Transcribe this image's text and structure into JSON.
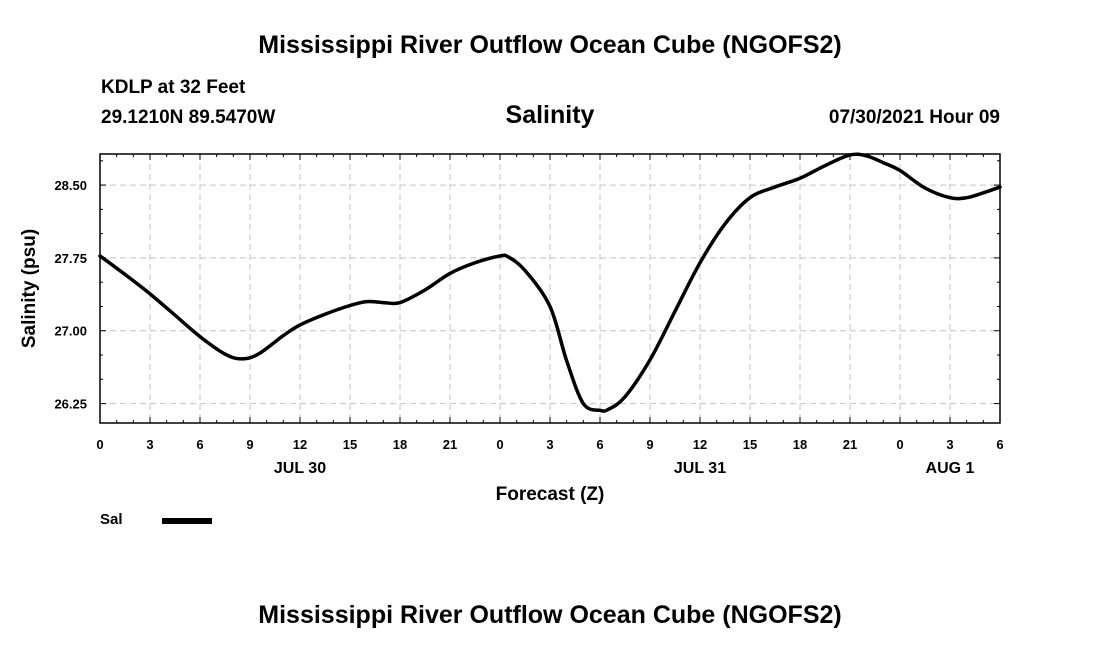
{
  "chart_data": {
    "type": "line",
    "title": "Mississippi River Outflow Ocean Cube (NGOFS2)",
    "bottom_title": "Mississippi River Outflow Ocean Cube (NGOFS2)",
    "station": "KDLP at 32 Feet",
    "coords": "29.1210N  89.5470W",
    "variable": "Salinity",
    "date": "07/30/2021 Hour 09",
    "xlabel": "Forecast (Z)",
    "ylabel": "Salinity (psu)",
    "xlim": [
      0,
      54
    ],
    "ylim": [
      26.05,
      28.82
    ],
    "x_ticks": [
      0,
      3,
      6,
      9,
      12,
      15,
      18,
      21,
      24,
      27,
      30,
      33,
      36,
      39,
      42,
      45,
      48,
      51,
      54
    ],
    "x_tick_labels": [
      "0",
      "3",
      "6",
      "9",
      "12",
      "15",
      "18",
      "21",
      "0",
      "3",
      "6",
      "9",
      "12",
      "15",
      "18",
      "21",
      "0",
      "3",
      "6"
    ],
    "y_ticks": [
      26.25,
      27.0,
      27.75,
      28.5
    ],
    "y_tick_labels": [
      "26.25",
      "27.00",
      "27.75",
      "28.50"
    ],
    "day_labels": [
      {
        "x": 12,
        "label": "JUL 30"
      },
      {
        "x": 36,
        "label": "JUL 31"
      },
      {
        "x": 51,
        "label": "AUG 1"
      }
    ],
    "grid": true,
    "series": [
      {
        "name": "Sal",
        "color": "#000000",
        "x": [
          0,
          1.5,
          3,
          4.5,
          6,
          7.5,
          8.5,
          9.5,
          11,
          12,
          13.5,
          15,
          16,
          17,
          18,
          19.5,
          21,
          22.5,
          24,
          24.5,
          25.5,
          27,
          28,
          29,
          30,
          30.5,
          31.5,
          33,
          34.5,
          36,
          37.5,
          39,
          40.5,
          42,
          43.5,
          45,
          46,
          47,
          48,
          49.5,
          51,
          52,
          53,
          54
        ],
        "y": [
          27.77,
          27.58,
          27.38,
          27.16,
          26.94,
          26.76,
          26.71,
          26.76,
          26.95,
          27.06,
          27.17,
          27.26,
          27.3,
          27.29,
          27.29,
          27.42,
          27.59,
          27.7,
          27.77,
          27.76,
          27.62,
          27.25,
          26.69,
          26.25,
          26.18,
          26.19,
          26.32,
          26.7,
          27.2,
          27.7,
          28.1,
          28.37,
          28.48,
          28.57,
          28.7,
          28.81,
          28.8,
          28.73,
          28.65,
          28.47,
          28.37,
          28.37,
          28.42,
          28.48
        ]
      }
    ]
  }
}
